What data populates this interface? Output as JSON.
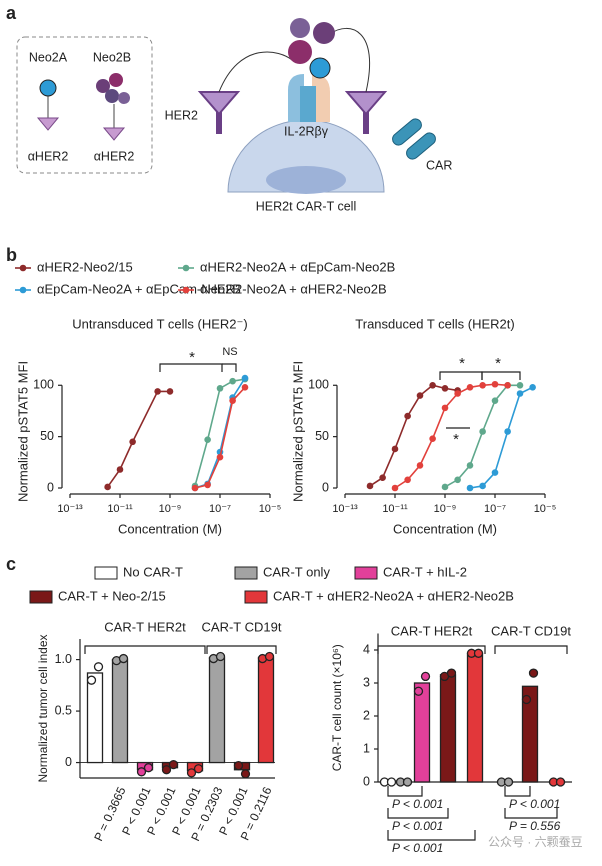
{
  "panel_labels": [
    "a",
    "b",
    "c"
  ],
  "diagram": {
    "left_labels": [
      "Neo2A",
      "Neo2B",
      "αHER2",
      "αHER2"
    ],
    "cell_labels": [
      "HER2",
      "IL-2Rβγ",
      "CAR",
      "HER2t CAR-T cell"
    ]
  },
  "watermark": "公众号 · 六颗蚕豆",
  "chart_data": [
    {
      "type": "line",
      "title": "Untransduced T cells (HER2⁻)",
      "xlabel": "Concentration (M)",
      "ylabel": "Normalized pSTAT5 MFI",
      "xscale": "log",
      "xlim": [
        1e-13,
        1e-05
      ],
      "xticks": [
        {
          "value": 1e-13,
          "label": "10⁻¹³"
        },
        {
          "value": 1e-11,
          "label": "10⁻¹¹"
        },
        {
          "value": 1e-09,
          "label": "10⁻⁹"
        },
        {
          "value": 1e-07,
          "label": "10⁻⁷"
        },
        {
          "value": 1e-05,
          "label": "10⁻⁵"
        }
      ],
      "ylim": [
        0,
        110
      ],
      "yticks": [
        0,
        50,
        100
      ],
      "annotations": [
        "*",
        "NS"
      ],
      "series": [
        {
          "name": "αHER2-Neo2/15",
          "color": "#8e2b2b",
          "x": [
            3.2e-12,
            1e-11,
            3.2e-11,
            3.2e-10,
            1e-09
          ],
          "values": [
            1,
            18,
            45,
            94,
            94
          ]
        },
        {
          "name": "αHER2-Neo2A + αEpCam-Neo2B",
          "color": "#5fa88c",
          "x": [
            1e-08,
            3.2e-08,
            1e-07,
            3.2e-07,
            1e-06
          ],
          "values": [
            2,
            47,
            97,
            104,
            106
          ]
        },
        {
          "name": "αEpCam-Neo2A + αEpCam-Neo2B",
          "color": "#2d9bd6",
          "x": [
            1e-08,
            3.2e-08,
            1e-07,
            3.2e-07,
            1e-06
          ],
          "values": [
            0,
            4,
            35,
            88,
            107
          ]
        },
        {
          "name": "αHER2-Neo2A + αHER2-Neo2B",
          "color": "#e2413c",
          "x": [
            1e-08,
            3.2e-08,
            1e-07,
            3.2e-07,
            1e-06
          ],
          "values": [
            0,
            3,
            30,
            85,
            98
          ]
        }
      ]
    },
    {
      "type": "line",
      "title": "Transduced T cells (HER2t)",
      "xlabel": "Concentration (M)",
      "ylabel": "Normalized pSTAT5 MFI",
      "xscale": "log",
      "xlim": [
        1e-13,
        1e-05
      ],
      "xticks": [
        {
          "value": 1e-13,
          "label": "10⁻¹³"
        },
        {
          "value": 1e-11,
          "label": "10⁻¹¹"
        },
        {
          "value": 1e-09,
          "label": "10⁻⁹"
        },
        {
          "value": 1e-07,
          "label": "10⁻⁷"
        },
        {
          "value": 1e-05,
          "label": "10⁻⁵"
        }
      ],
      "ylim": [
        0,
        110
      ],
      "yticks": [
        0,
        50,
        100
      ],
      "annotations": [
        "*",
        "*",
        "*"
      ],
      "series": [
        {
          "color": "#8e2b2b",
          "x": [
            1e-12,
            3.2e-12,
            1e-11,
            3.2e-11,
            1e-10,
            3.2e-10,
            1e-09,
            3.2e-09
          ],
          "values": [
            2,
            10,
            38,
            70,
            90,
            100,
            97,
            95
          ]
        },
        {
          "color": "#5fa88c",
          "x": [
            1e-09,
            3.2e-09,
            1e-08,
            3.2e-08,
            1e-07,
            3.2e-07,
            1e-06
          ],
          "values": [
            1,
            8,
            22,
            55,
            85,
            100,
            100
          ]
        },
        {
          "color": "#2d9bd6",
          "x": [
            1e-08,
            3.2e-08,
            1e-07,
            3.2e-07,
            1e-06,
            3.2e-06
          ],
          "values": [
            0,
            2,
            15,
            55,
            92,
            98
          ]
        },
        {
          "color": "#e2413c",
          "x": [
            1e-11,
            3.2e-11,
            1e-10,
            3.2e-10,
            1e-09,
            3.2e-09,
            1e-08,
            3.2e-08,
            1e-07,
            3.2e-07
          ],
          "values": [
            0,
            8,
            22,
            48,
            78,
            92,
            98,
            100,
            101,
            100
          ]
        }
      ]
    },
    {
      "type": "bar",
      "ylabel": "Normalized tumor cell index",
      "ylim": [
        -0.15,
        1.2
      ],
      "yticks": [
        0,
        0.5,
        {
          "value": 1,
          "label": "1.0"
        }
      ],
      "legend": [
        {
          "name": "No CAR-T",
          "color": "#ffffff"
        },
        {
          "name": "CAR-T only",
          "color": "#a3a3a3"
        },
        {
          "name": "CAR-T + hIL-2",
          "color": "#e2409a"
        },
        {
          "name": "CAR-T + Neo-2/15",
          "color": "#7a1818"
        },
        {
          "name": "CAR-T + αHER2-Neo2A + αHER2-Neo2B",
          "color": "#e2373a"
        }
      ],
      "groups": [
        {
          "name": "CAR-T HER2t",
          "bars": [
            {
              "color": "#ffffff",
              "value": 0.87,
              "points": [
                0.8,
                0.93
              ],
              "label": null
            },
            {
              "color": "#a3a3a3",
              "value": 1.0,
              "points": [
                0.99,
                1.01
              ],
              "label": "P = 0.3665"
            },
            {
              "color": "#e2409a",
              "value": -0.07,
              "points": [
                -0.09,
                -0.05
              ],
              "label": "P < 0.001"
            },
            {
              "color": "#7a1818",
              "value": -0.05,
              "points": [
                -0.07,
                -0.02
              ],
              "label": "P < 0.001"
            },
            {
              "color": "#e2373a",
              "value": -0.08,
              "points": [
                -0.1,
                -0.06
              ],
              "label": "P < 0.001"
            }
          ]
        },
        {
          "name": "CAR-T CD19t",
          "bars": [
            {
              "color": "#a3a3a3",
              "value": 1.02,
              "points": [
                1.01,
                1.03
              ],
              "label": "P = 0.2303"
            },
            {
              "color": "#7a1818",
              "value": -0.07,
              "points": [
                -0.03,
                -0.11
              ],
              "label": "P < 0.001"
            },
            {
              "color": "#e2373a",
              "value": 1.02,
              "points": [
                1.01,
                1.03
              ],
              "label": "P = 0.2116"
            }
          ]
        }
      ]
    },
    {
      "type": "bar",
      "ylabel": "CAR-T cell count (×10⁶)",
      "ylim": [
        0,
        4.5
      ],
      "yticks": [
        0,
        1,
        2,
        3,
        4
      ],
      "groups": [
        {
          "name": "CAR-T HER2t",
          "bars": [
            {
              "color": "#ffffff",
              "value": 0,
              "points": [
                0,
                0
              ]
            },
            {
              "color": "#a3a3a3",
              "value": 0,
              "points": [
                0,
                0
              ]
            },
            {
              "color": "#e2409a",
              "value": 3.0,
              "points": [
                2.75,
                3.2
              ]
            },
            {
              "color": "#7a1818",
              "value": 3.25,
              "points": [
                3.2,
                3.3
              ]
            },
            {
              "color": "#e2373a",
              "value": 3.9,
              "points": [
                3.9,
                3.9
              ]
            }
          ]
        },
        {
          "name": "CAR-T CD19t",
          "bars": [
            {
              "color": "#a3a3a3",
              "value": 0,
              "points": [
                0,
                0
              ]
            },
            {
              "color": "#7a1818",
              "value": 2.9,
              "points": [
                2.5,
                3.3
              ]
            },
            {
              "color": "#e2373a",
              "value": 0,
              "points": [
                0,
                0
              ]
            }
          ]
        }
      ],
      "p_values": [
        "P < 0.001",
        "P < 0.001",
        "P < 0.001",
        "P < 0.001",
        "P = 0.556"
      ]
    }
  ]
}
